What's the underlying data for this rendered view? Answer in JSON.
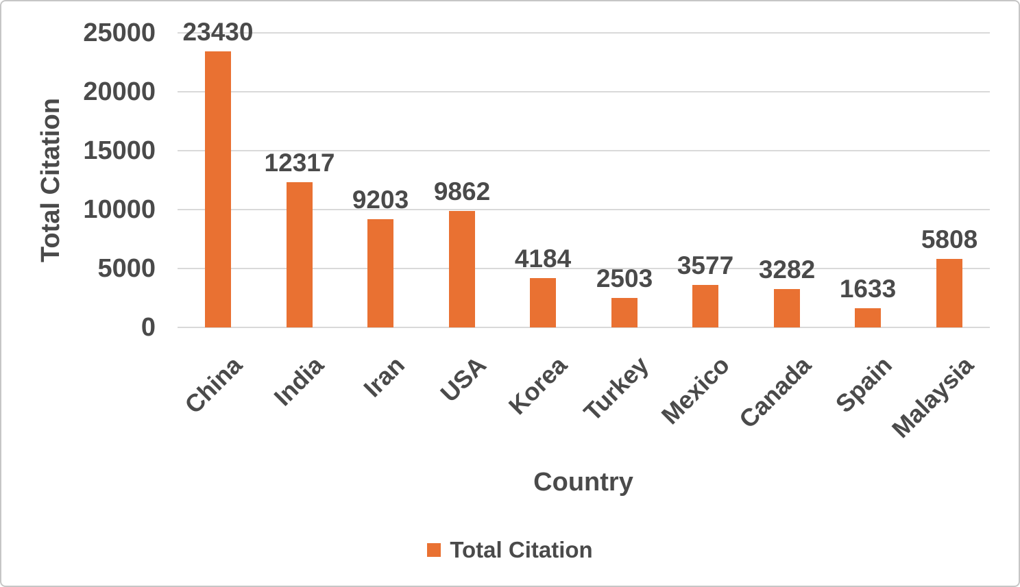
{
  "chart_data": {
    "type": "bar",
    "categories": [
      "China",
      "India",
      "Iran",
      "USA",
      "Korea",
      "Turkey",
      "Mexico",
      "Canada",
      "Spain",
      "Malaysia"
    ],
    "values": [
      23430,
      12317,
      9203,
      9862,
      4184,
      2503,
      3577,
      3282,
      1633,
      5808
    ],
    "series_name": "Total Citation",
    "title": "",
    "xlabel": "Country",
    "ylabel": "Total Citation",
    "ylim": [
      0,
      25000
    ],
    "yticks": [
      0,
      5000,
      10000,
      15000,
      20000,
      25000
    ],
    "grid": true,
    "data_labels": true,
    "legend_position": "bottom",
    "legend_label": "Total Citation",
    "bar_color": "#E97132",
    "gridline_color": "#D9D9D9",
    "text_color": "#4A4A4A"
  }
}
